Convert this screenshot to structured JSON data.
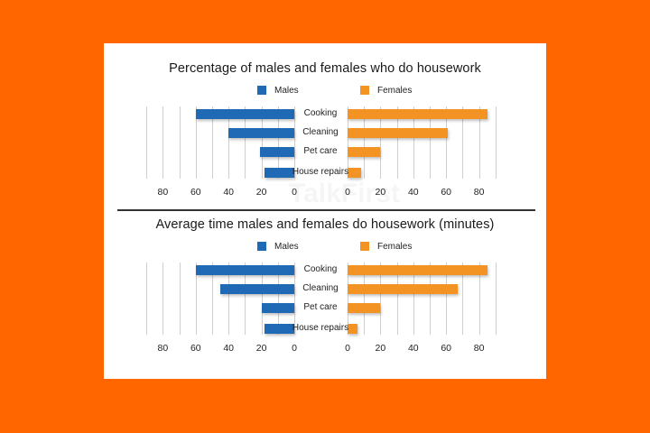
{
  "colors": {
    "background": "#FF6600",
    "males": "#1F69B5",
    "females": "#F39323"
  },
  "legend": {
    "males": "Males",
    "females": "Females"
  },
  "chart_data": [
    {
      "type": "bar",
      "orientation": "horizontal-butterfly",
      "title": "Percentage of males and females who do housework",
      "categories": [
        "Cooking",
        "Cleaning",
        "Pet care",
        "House repairs"
      ],
      "series": [
        {
          "name": "Males",
          "values": [
            60,
            40,
            21,
            18
          ]
        },
        {
          "name": "Females",
          "values": [
            85,
            61,
            20,
            8
          ]
        }
      ],
      "xticks_males": [
        "80",
        "60",
        "40",
        "20",
        "0"
      ],
      "xticks_females": [
        "0",
        "20",
        "40",
        "60",
        "80"
      ],
      "xlim": [
        0,
        90
      ],
      "grid": true,
      "legend_position": "top"
    },
    {
      "type": "bar",
      "orientation": "horizontal-butterfly",
      "title": "Average time males and females do housework (minutes)",
      "categories": [
        "Cooking",
        "Cleaning",
        "Pet care",
        "House repairs"
      ],
      "series": [
        {
          "name": "Males",
          "values": [
            60,
            45,
            20,
            18
          ]
        },
        {
          "name": "Females",
          "values": [
            85,
            67,
            20,
            6
          ]
        }
      ],
      "xticks_males": [
        "80",
        "60",
        "40",
        "20",
        "0"
      ],
      "xticks_females": [
        "0",
        "20",
        "40",
        "60",
        "80"
      ],
      "xlim": [
        0,
        90
      ],
      "grid": true,
      "legend_position": "top"
    }
  ]
}
